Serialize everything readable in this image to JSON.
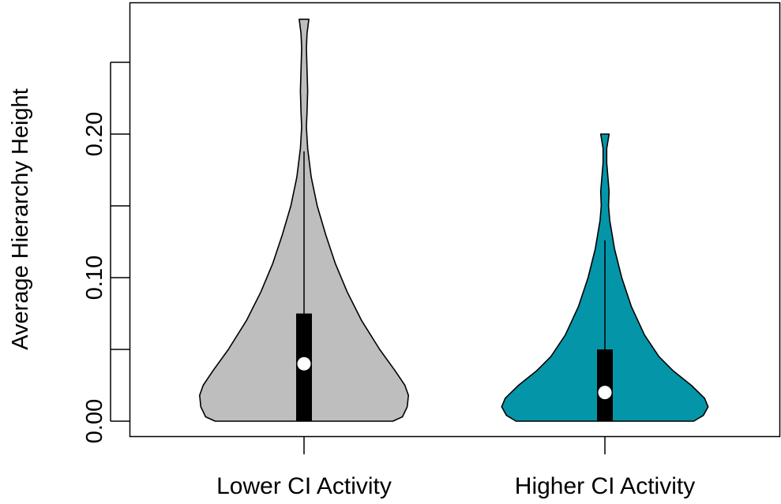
{
  "chart_data": {
    "type": "violin",
    "title": "",
    "ylabel": "Average Hierarchy Height",
    "xlabel": "",
    "ylim": [
      -0.01,
      0.29
    ],
    "y_ticks": [
      0.0,
      0.05,
      0.1,
      0.15,
      0.2,
      0.25
    ],
    "y_tick_labels": [
      "0.00",
      "",
      "0.10",
      "",
      "0.20",
      ""
    ],
    "grid": false,
    "legend": "none",
    "categories": [
      "Lower CI Activity",
      "Higher CI Activity"
    ],
    "series": [
      {
        "category": "Lower CI Activity",
        "color": "#bebebe",
        "median": 0.04,
        "q1": 0.0,
        "q3": 0.075,
        "whisker_low": 0.0,
        "whisker_high": 0.188,
        "density": [
          [
            0.0,
            0.74
          ],
          [
            0.003,
            0.82
          ],
          [
            0.01,
            0.86
          ],
          [
            0.018,
            0.87
          ],
          [
            0.025,
            0.84
          ],
          [
            0.035,
            0.76
          ],
          [
            0.05,
            0.63
          ],
          [
            0.07,
            0.48
          ],
          [
            0.09,
            0.36
          ],
          [
            0.11,
            0.26
          ],
          [
            0.13,
            0.18
          ],
          [
            0.15,
            0.11
          ],
          [
            0.17,
            0.06
          ],
          [
            0.19,
            0.03
          ],
          [
            0.205,
            0.02
          ],
          [
            0.215,
            0.025
          ],
          [
            0.23,
            0.03
          ],
          [
            0.245,
            0.025
          ],
          [
            0.26,
            0.02
          ],
          [
            0.27,
            0.025
          ],
          [
            0.28,
            0.04
          ]
        ]
      },
      {
        "category": "Higher CI Activity",
        "color": "#0595a8",
        "median": 0.02,
        "q1": 0.0,
        "q3": 0.05,
        "whisker_low": 0.0,
        "whisker_high": 0.126,
        "density": [
          [
            0.0,
            0.74
          ],
          [
            0.004,
            0.82
          ],
          [
            0.01,
            0.86
          ],
          [
            0.016,
            0.83
          ],
          [
            0.025,
            0.72
          ],
          [
            0.035,
            0.57
          ],
          [
            0.045,
            0.45
          ],
          [
            0.06,
            0.33
          ],
          [
            0.08,
            0.22
          ],
          [
            0.1,
            0.14
          ],
          [
            0.12,
            0.08
          ],
          [
            0.14,
            0.04
          ],
          [
            0.15,
            0.03
          ],
          [
            0.16,
            0.035
          ],
          [
            0.17,
            0.025
          ],
          [
            0.18,
            0.015
          ],
          [
            0.19,
            0.015
          ],
          [
            0.2,
            0.035
          ]
        ]
      }
    ]
  }
}
